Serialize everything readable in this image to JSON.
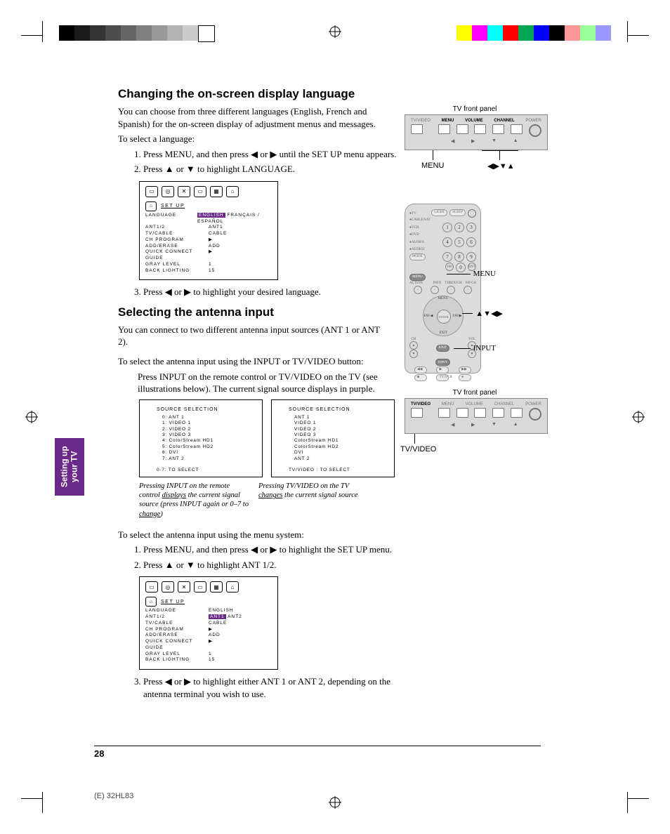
{
  "print_marks": {
    "grayscale_bar": [
      "#000000",
      "#1a1a1a",
      "#333333",
      "#4d4d4d",
      "#666666",
      "#808080",
      "#999999",
      "#b3b3b3",
      "#cccccc",
      "#ffffff"
    ],
    "color_bar": [
      "#ffff00",
      "#ff00ff",
      "#00ffff",
      "#ff0000",
      "#00a651",
      "#0000ff",
      "#000000",
      "#ff9999",
      "#99ff99",
      "#9999ff"
    ]
  },
  "side_tab": {
    "line1": "Setting up",
    "line2": "your TV",
    "bg": "#6b2a8a"
  },
  "page_number": "28",
  "footer_code": "(E) 32HL83",
  "section1": {
    "heading": "Changing the on-screen display language",
    "p1": "You can choose from three different languages (English, French and Spanish) for the on-screen display of adjustment menus and messages.",
    "p2": "To select a language:",
    "steps": [
      "Press MENU, and then press ◀ or ▶ until the SET UP menu appears.",
      "Press ▲ or ▼ to highlight LANGUAGE."
    ],
    "step3": "Press ◀ or ▶ to highlight your desired language."
  },
  "osd1": {
    "title": "SET  UP",
    "rows": [
      {
        "l": "LANGUAGE",
        "r": "ENGLISH   FRANÇAIS / ESPAÑOL",
        "hl": true
      },
      {
        "l": "ANT1/2",
        "r": "ANT1"
      },
      {
        "l": "TV/CABLE",
        "r": "CABLE"
      },
      {
        "l": "CH PROGRAM",
        "r": "▶"
      },
      {
        "l": "ADD/ERASE",
        "r": "ADD"
      },
      {
        "l": "QUICK CONNECT GUIDE",
        "r": "▶"
      },
      {
        "l": "GRAY LEVEL",
        "r": "1"
      },
      {
        "l": "BACK LIGHTING",
        "r": "15"
      }
    ]
  },
  "section2": {
    "heading": "Selecting the antenna input",
    "p1": "You can connect to two different antenna input sources (ANT 1 or ANT 2).",
    "p2": "To select the antenna input using the INPUT or TV/VIDEO button:",
    "p3": "Press INPUT on the remote control or TV/VIDEO on the TV (see illustrations below). The current signal source displays in purple."
  },
  "sourceA": {
    "heading": "SOURCE SELECTION",
    "lines": [
      "0: ANT 1",
      "1: VIDEO 1",
      "2: VIDEO 2",
      "3: VIDEO 3",
      "4: ColorStream HD1",
      "5: ColorStream HD2",
      "6: DVI",
      "7: ANT 2"
    ],
    "footer": "0-7: TO SELECT"
  },
  "sourceB": {
    "heading": "SOURCE SELECTION",
    "lines": [
      "ANT 1",
      "VIDEO 1",
      "VIDEO 2",
      "VIDEO 3",
      "ColorStream HD1",
      "ColorStream HD2",
      "DVI",
      "ANT 2"
    ],
    "footer": "TV/VIDEO : TO SELECT"
  },
  "captionA": {
    "pre": "Pressing INPUT on the remote control ",
    "u": "displays",
    "post": " the current signal source (press INPUT again or 0–7 to ",
    "u2": "change",
    "post2": ")"
  },
  "captionB": {
    "pre": "Pressing TV/VIDEO on the TV ",
    "u": "changes",
    "post": " the current signal source"
  },
  "section3": {
    "p1": "To select the antenna input using the menu system:",
    "steps": [
      "Press MENU, and then press ◀ or ▶ to highlight the SET UP menu.",
      "Press ▲ or ▼ to highlight ANT 1/2."
    ],
    "step3": "Press ◀ or ▶ to highlight either ANT 1 or ANT 2, depending on the antenna terminal you wish to use."
  },
  "osd2": {
    "title": "SET  UP",
    "rows": [
      {
        "l": "LANGUAGE",
        "r": "ENGLISH"
      },
      {
        "l": "ANT1/2",
        "r": "ANT1   ANT2",
        "hl": true
      },
      {
        "l": "TV/CABLE",
        "r": "CABLE"
      },
      {
        "l": "CH PROGRAM",
        "r": "▶"
      },
      {
        "l": "ADD/ERASE",
        "r": "ADD"
      },
      {
        "l": "QUICK CONNECT GUIDE",
        "r": "▶"
      },
      {
        "l": "GRAY LEVEL",
        "r": "1"
      },
      {
        "l": "BACK LIGHTING",
        "r": "15"
      }
    ]
  },
  "tv_panel": {
    "title": "TV front panel",
    "labels": [
      "TV/VIDEO",
      "MENU",
      "VOLUME",
      "CHANNEL",
      "POWER"
    ],
    "arrows_row": [
      "◀",
      "▶",
      "▼",
      "▲"
    ],
    "callout_menu": "MENU",
    "callout_arrows": "◀▶▼▲"
  },
  "remote": {
    "left_labels": [
      "TV",
      "CABLE/SAT",
      "VCR",
      "DVD",
      "AUDIO1",
      "AUDIO2"
    ],
    "top_right": [
      "LIGHT",
      "SLEEP",
      "POWER"
    ],
    "mode_btn": "MODE",
    "numbers": [
      "1",
      "2",
      "3",
      "4",
      "5",
      "6",
      "7",
      "8",
      "9",
      "0"
    ],
    "bottom_num_row": [
      "100",
      "0",
      "ENT"
    ],
    "menu_row": [
      "MENU"
    ],
    "action_btn": "ACTION",
    "enter": "ENTER",
    "dpad_labels": [
      "MENU",
      "FAV◀",
      "FAV▶",
      "EXIT"
    ],
    "mid_labels": [
      "INFO",
      "THROUGH",
      "CH",
      "CH",
      "PIP",
      "SWAP"
    ],
    "ch_vol": [
      "CH",
      "VOL"
    ],
    "exit": "EXIT",
    "input": "INPUT",
    "bottom": [
      "◀◀",
      "▶▶",
      "■",
      "●",
      "TV/VCR",
      "REC"
    ],
    "callout_menu": "MENU",
    "callout_arrows": "▲▼◀▶",
    "callout_input": "INPUT"
  },
  "tv_panel2": {
    "title": "TV front panel",
    "labels": [
      "TV/VIDEO",
      "MENU",
      "VOLUME",
      "CHANNEL",
      "POWER"
    ],
    "arrows_row": [
      "◀",
      "▶",
      "▼",
      "▲"
    ],
    "callout": "TV/VIDEO"
  }
}
